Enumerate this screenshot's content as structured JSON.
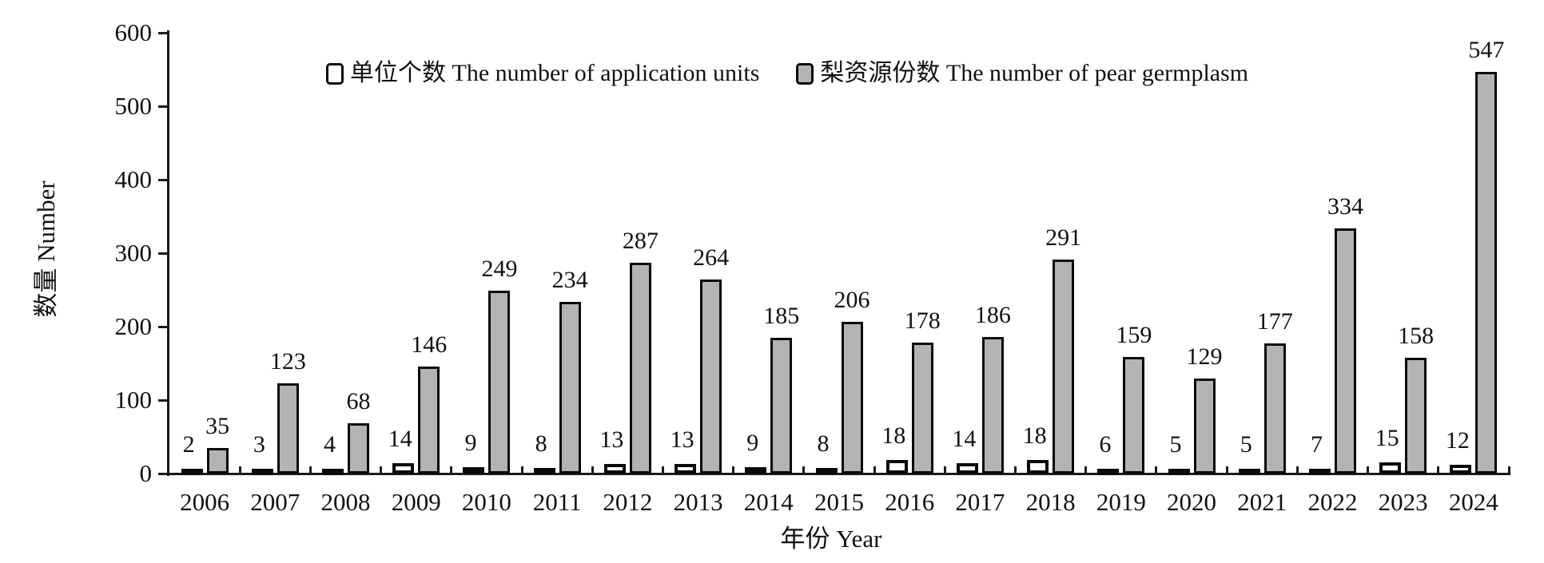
{
  "colors": {
    "bar_units_fill": "#ffffff",
    "bar_germplasm_fill": "#b3b3b3",
    "bar_border": "#0a0a0a",
    "axis": "#1a1a1a",
    "text": "#111111",
    "background": "#ffffff"
  },
  "legend": {
    "units_label": "单位个数 The number of application units",
    "germplasm_label": "梨资源份数 The number of pear germplasm"
  },
  "y_axis": {
    "title": "数量 Number",
    "ticks": [
      0,
      100,
      200,
      300,
      400,
      500,
      600
    ]
  },
  "x_axis": {
    "title": "年份 Year"
  },
  "chart_data": {
    "type": "bar",
    "title": "",
    "xlabel": "年份 Year",
    "ylabel": "数量 Number",
    "ylim": [
      0,
      600
    ],
    "grid": false,
    "legend_position": "top-inside",
    "categories": [
      "2006",
      "2007",
      "2008",
      "2009",
      "2010",
      "2011",
      "2012",
      "2013",
      "2014",
      "2015",
      "2016",
      "2017",
      "2018",
      "2019",
      "2020",
      "2021",
      "2022",
      "2023",
      "2024"
    ],
    "series": [
      {
        "name": "单位个数 The number of application units",
        "values": [
          2,
          3,
          4,
          14,
          9,
          8,
          13,
          13,
          9,
          8,
          18,
          14,
          18,
          6,
          5,
          5,
          7,
          15,
          12
        ]
      },
      {
        "name": "梨资源份数 The number of pear germplasm",
        "values": [
          35,
          123,
          68,
          146,
          249,
          234,
          287,
          264,
          185,
          206,
          178,
          186,
          291,
          159,
          129,
          177,
          334,
          158,
          547
        ]
      }
    ]
  }
}
